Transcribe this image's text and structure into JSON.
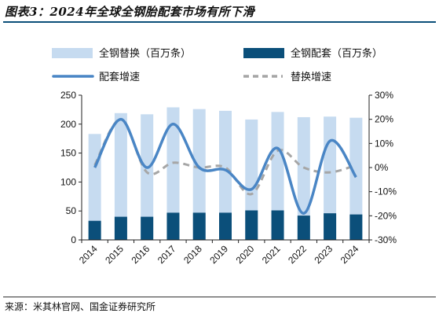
{
  "title": "图表3：2024年全球全钢胎配套市场有所下滑",
  "source": "来源：米其林官网、国金证券研究所",
  "colors": {
    "replacement_bar": "#c6dbf0",
    "oe_bar": "#0b4f7a",
    "oe_growth_line": "#4a86c5",
    "replacement_growth_line": "#a6a6a6"
  },
  "chart_data": {
    "type": "bar",
    "categories": [
      "2014",
      "2015",
      "2016",
      "2017",
      "2018",
      "2019",
      "2020",
      "2021",
      "2022",
      "2023",
      "2024"
    ],
    "ylim": [
      0,
      250
    ],
    "y_ticks": [
      "0",
      "50",
      "100",
      "150",
      "200",
      "250"
    ],
    "y2lim": [
      -30,
      30
    ],
    "y2_ticks": [
      "-30%",
      "-20%",
      "-10%",
      "0%",
      "10%",
      "20%",
      "30%"
    ],
    "series": [
      {
        "name": "全钢替换（百万条）",
        "kind": "bar",
        "axis": "left",
        "values": [
          183,
          219,
          217,
          229,
          226,
          223,
          208,
          221,
          212,
          213,
          211
        ]
      },
      {
        "name": "全钢配套（百万条）",
        "kind": "bar",
        "axis": "left",
        "values": [
          33,
          40,
          40,
          47,
          47,
          47,
          51,
          51,
          42,
          46,
          44
        ]
      },
      {
        "name": "配套增速",
        "kind": "line",
        "style": "solid",
        "axis": "right",
        "values": [
          0,
          20,
          0,
          18,
          0,
          -1,
          -9,
          8,
          -19,
          11,
          -4
        ]
      },
      {
        "name": "替换增速",
        "kind": "line",
        "style": "dashed",
        "axis": "right",
        "values": [
          1,
          20,
          -2,
          2,
          0,
          0,
          -11,
          7,
          0,
          -2,
          1
        ]
      }
    ],
    "legend": [
      {
        "label": "全钢替换（百万条）",
        "symbol": "bar-light"
      },
      {
        "label": "全钢配套（百万条）",
        "symbol": "bar-dark"
      },
      {
        "label": "配套增速",
        "symbol": "line-solid"
      },
      {
        "label": "替换增速",
        "symbol": "line-dashed"
      }
    ],
    "grid": false,
    "legend_position": "top"
  }
}
